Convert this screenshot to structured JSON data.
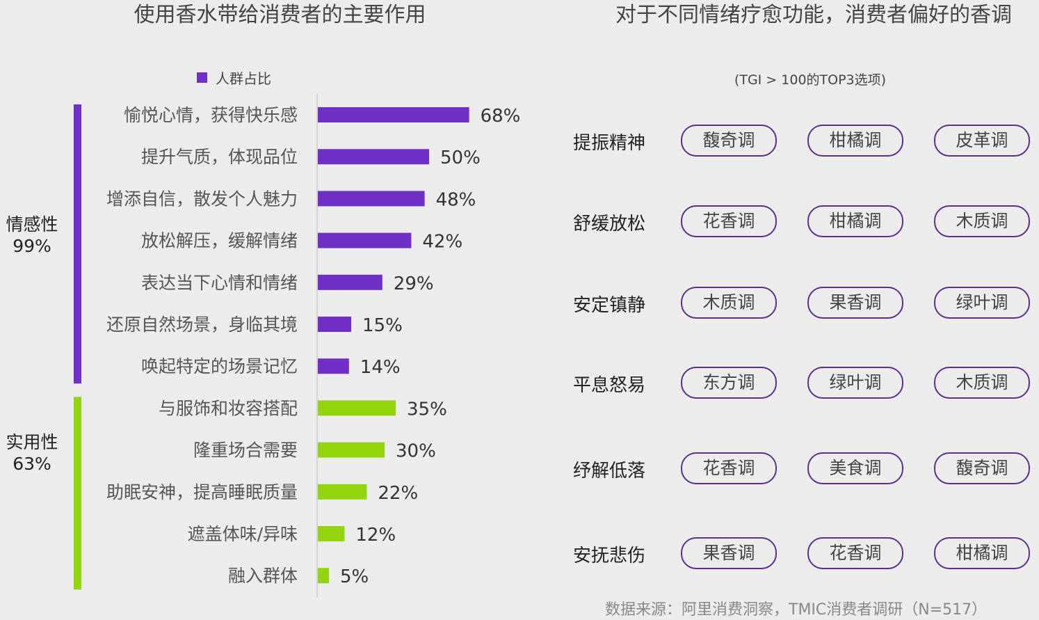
{
  "left_title": "使用香水带给消费者的主要作用",
  "legend_label": "人群占比",
  "right_title": "对于不同情绪疗愈功能，消费者偏好的香调",
  "right_subtitle": "(TGI > 100的TOP3选项)",
  "source": "数据来源：阿里消费洞察，TMIC消费者调研（N=517）",
  "colors": {
    "emotional": "#7030c8",
    "practical": "#92d50c",
    "pill_border": "#5b2d8e"
  },
  "groups": [
    {
      "name": "情感性",
      "value": "99%",
      "color_key": "emotional"
    },
    {
      "name": "实用性",
      "value": "63%",
      "color_key": "practical"
    }
  ],
  "chart_data": {
    "type": "bar",
    "orientation": "horizontal",
    "title": "使用香水带给消费者的主要作用",
    "xlim": [
      0,
      100
    ],
    "series": [
      {
        "name": "人群占比",
        "values": [
          68,
          50,
          48,
          42,
          29,
          15,
          14,
          35,
          30,
          22,
          12,
          5
        ]
      }
    ],
    "categories": [
      "愉悦心情，获得快乐感",
      "提升气质，体现品位",
      "增添自信，散发个人魅力",
      "放松解压，缓解情绪",
      "表达当下心情和情绪",
      "还原自然场景，身临其境",
      "唤起特定的场景记忆",
      "与服饰和妆容搭配",
      "隆重场合需要",
      "助眠安神，提高睡眠质量",
      "遮盖体味/异味",
      "融入群体"
    ],
    "value_labels": [
      "68%",
      "50%",
      "48%",
      "42%",
      "29%",
      "15%",
      "14%",
      "35%",
      "30%",
      "22%",
      "12%",
      "5%"
    ],
    "bar_groups": [
      "emotional",
      "emotional",
      "emotional",
      "emotional",
      "emotional",
      "emotional",
      "emotional",
      "practical",
      "practical",
      "practical",
      "practical",
      "practical"
    ]
  },
  "moods": [
    {
      "label": "提振精神",
      "notes": [
        "馥奇调",
        "柑橘调",
        "皮革调"
      ]
    },
    {
      "label": "舒缓放松",
      "notes": [
        "花香调",
        "柑橘调",
        "木质调"
      ]
    },
    {
      "label": "安定镇静",
      "notes": [
        "木质调",
        "果香调",
        "绿叶调"
      ]
    },
    {
      "label": "平息怒易",
      "notes": [
        "东方调",
        "绿叶调",
        "木质调"
      ]
    },
    {
      "label": "纾解低落",
      "notes": [
        "花香调",
        "美食调",
        "馥奇调"
      ]
    },
    {
      "label": "安抚悲伤",
      "notes": [
        "果香调",
        "花香调",
        "柑橘调"
      ]
    }
  ]
}
